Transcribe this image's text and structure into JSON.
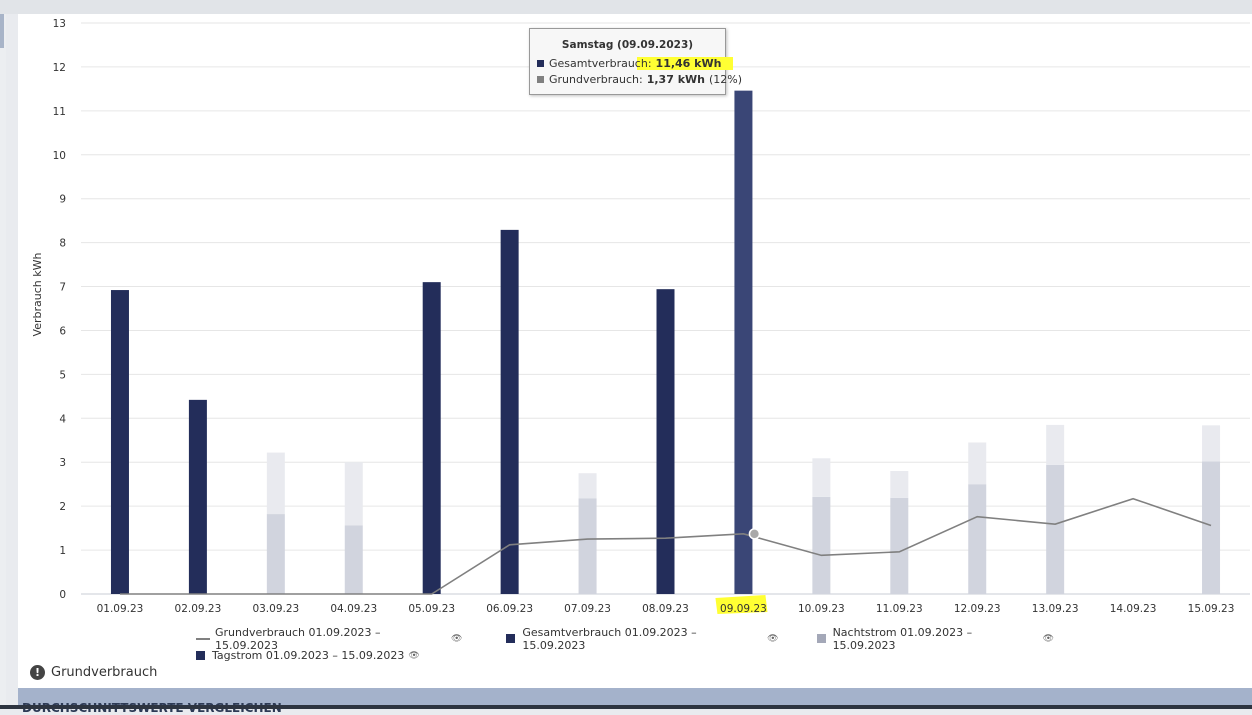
{
  "chart_data": {
    "type": "bar",
    "ylabel": "Verbrauch kWh",
    "ylim": [
      0,
      13
    ],
    "yticks": [
      "0",
      "1",
      "2",
      "3",
      "4",
      "5",
      "6",
      "7",
      "8",
      "9",
      "10",
      "11",
      "12",
      "13"
    ],
    "categories": [
      "01.09.23",
      "02.09.23",
      "03.09.23",
      "04.09.23",
      "05.09.23",
      "06.09.23",
      "07.09.23",
      "08.09.23",
      "09.09.23",
      "10.09.23",
      "11.09.23",
      "12.09.23",
      "13.09.23",
      "14.09.23",
      "15.09.23"
    ],
    "highlighted_category": "09.09.23",
    "grid": true,
    "series": [
      {
        "name": "Grundverbrauch 01.09.2023 – 15.09.2023",
        "kind": "line",
        "color": "#808080",
        "values": [
          0,
          0,
          0,
          0,
          0,
          1.12,
          1.25,
          1.27,
          1.37,
          0.88,
          0.96,
          1.76,
          1.59,
          2.17,
          1.56
        ]
      },
      {
        "name": "Gesamtverbrauch 01.09.2023 – 15.09.2023",
        "kind": "bar",
        "color": "#232d5a",
        "values": [
          6.92,
          4.42,
          0,
          0,
          7.1,
          8.29,
          0,
          6.94,
          11.46,
          0,
          0,
          0,
          0,
          0,
          0
        ]
      },
      {
        "name": "Nachtstrom 01.09.2023 – 15.09.2023",
        "kind": "bar",
        "color": "#d1d4de",
        "values": [
          0,
          0,
          1.82,
          1.56,
          0,
          0,
          2.18,
          0,
          0,
          2.21,
          2.19,
          2.5,
          2.94,
          0,
          3.02
        ]
      },
      {
        "name": "Tagstrom 01.09.2023 – 15.09.2023",
        "kind": "bar",
        "color": "#232d5a",
        "values": [
          0,
          0,
          1.4,
          1.44,
          0,
          0,
          0.57,
          0,
          0,
          0.88,
          0.61,
          0.95,
          0.91,
          0,
          0.82
        ]
      }
    ]
  },
  "tooltip": {
    "title": "Samstag (09.09.2023)",
    "row1_label": "Gesamtverbrauch:",
    "row1_value": "11,46 kWh",
    "row1_color": "#232d5a",
    "row2_label": "Grundverbrauch:",
    "row2_value": "1,37 kWh",
    "row2_extra": "(12%)",
    "row2_color": "#808080"
  },
  "legend": {
    "items": [
      {
        "label": "Grundverbrauch 01.09.2023 – 15.09.2023",
        "type": "line",
        "color": "#808080"
      },
      {
        "label": "Gesamtverbrauch 01.09.2023 – 15.09.2023",
        "type": "box",
        "color": "#232d5a"
      },
      {
        "label": "Nachtstrom 01.09.2023 – 15.09.2023",
        "type": "box",
        "color": "#a4a8b8"
      },
      {
        "label": "Tagstrom 01.09.2023 – 15.09.2023",
        "type": "box",
        "color": "#232d5a"
      }
    ],
    "eye_icon": "eye-icon"
  },
  "info": {
    "icon": "exclamation-circle-icon",
    "label": "Grundverbrauch"
  },
  "bottom_banner": {
    "text": "DURCHSCHNITTSWERTE VERGLEICHEN"
  },
  "colors": {
    "highlight": "#ffff33",
    "tagstrom_light": "#e9eaef"
  }
}
